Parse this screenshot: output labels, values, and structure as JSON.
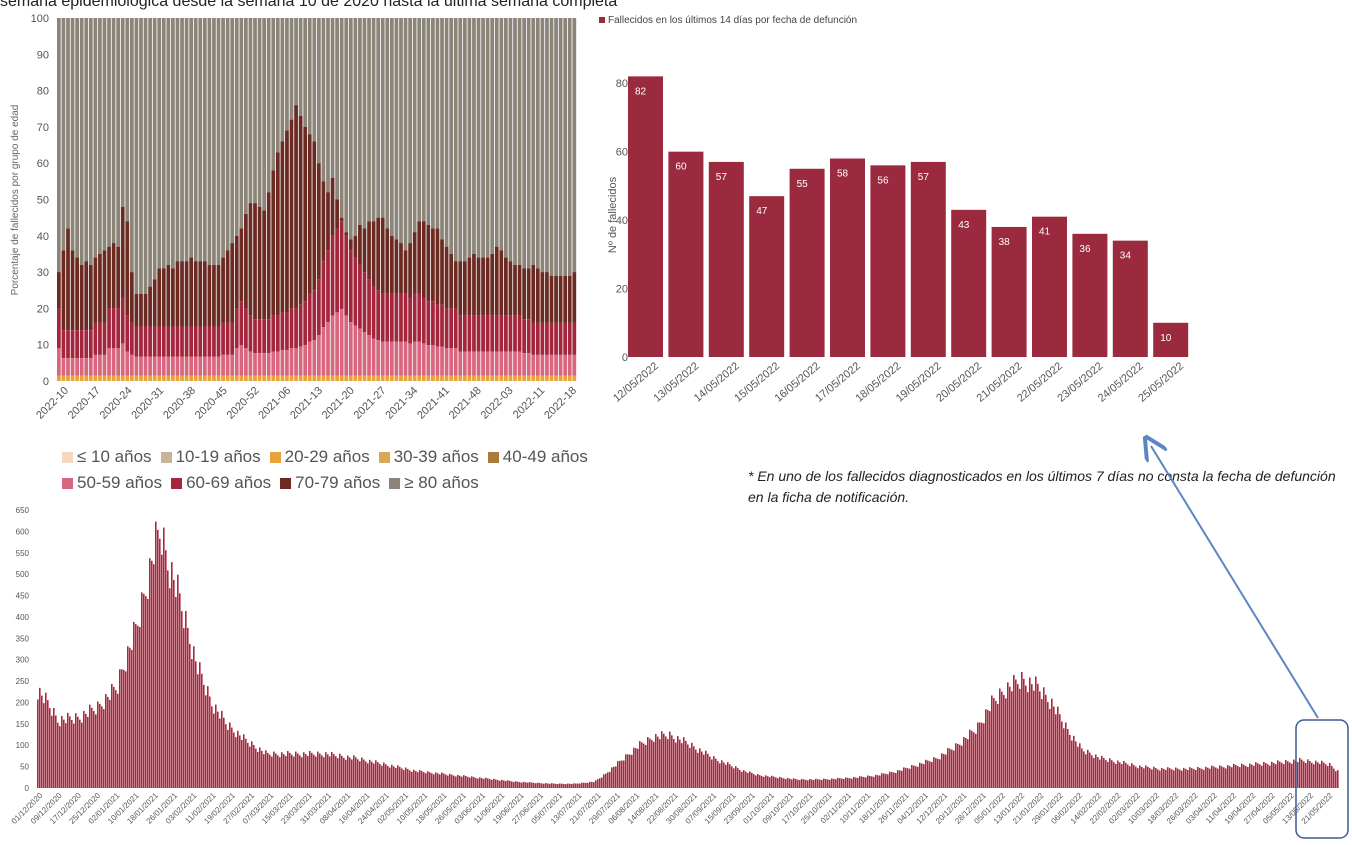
{
  "header": {
    "text": "semana epidemiológica desde la semana 10 de 2020 hasta la última semana completa"
  },
  "footnote": {
    "text": "* En uno de los fallecidos diagnosticados en los últimos 7 días no consta la fecha de defunción en la ficha de notificación."
  },
  "chart_data": [
    {
      "type": "bar",
      "stacked": true,
      "ylabel": "Porcentaje de fallecidos por grupo de edad",
      "ylim": [
        0,
        100
      ],
      "yticks": [
        0,
        10,
        20,
        30,
        40,
        50,
        60,
        70,
        80,
        90,
        100
      ],
      "xtick_labels": [
        "2022-10",
        "2020-17",
        "2020-24",
        "2020-31",
        "2020-38",
        "2020-45",
        "2020-52",
        "2021-06",
        "2021-13",
        "2021-20",
        "2021-27",
        "2021-34",
        "2021-41",
        "2021-48",
        "2022-03",
        "2022-11",
        "2022-18"
      ],
      "legend": [
        {
          "name": "≤ 10 años",
          "color": "#f2d9bf"
        },
        {
          "name": "10-19 años",
          "color": "#c8b49a"
        },
        {
          "name": "20-29 años",
          "color": "#e9a23b"
        },
        {
          "name": "30-39 años",
          "color": "#d8a955"
        },
        {
          "name": "40-49 años",
          "color": "#a87a3c"
        },
        {
          "name": "50-59 años",
          "color": "#d9667f"
        },
        {
          "name": "60-69 años",
          "color": "#a3263c"
        },
        {
          "name": "70-79 años",
          "color": "#6b2a22"
        },
        {
          "name": "≥ 80 años",
          "color": "#8b8478"
        }
      ],
      "weeks": 114,
      "cumulative_under70_pct": [
        20,
        14,
        14,
        14,
        14,
        14,
        14,
        14,
        16,
        16,
        16,
        20,
        20,
        20,
        23,
        18,
        16,
        15,
        15,
        15,
        15,
        15,
        15,
        15,
        15,
        15,
        15,
        15,
        15,
        15,
        15,
        15,
        15,
        15,
        15,
        15,
        16,
        16,
        16,
        20,
        22,
        20,
        18,
        17,
        17,
        17,
        17,
        18,
        18,
        19,
        19,
        20,
        20,
        21,
        22,
        24,
        25,
        28,
        33,
        36,
        40,
        42,
        44,
        40,
        36,
        34,
        32,
        30,
        28,
        26,
        25,
        24,
        24,
        24,
        24,
        24,
        24,
        23,
        24,
        24,
        23,
        22,
        22,
        21,
        21,
        20,
        20,
        20,
        18,
        18,
        18,
        18,
        18,
        18,
        18,
        18,
        18,
        18,
        18,
        18,
        18,
        18,
        17,
        17,
        16,
        16,
        16,
        16,
        16,
        16,
        16,
        16,
        16,
        16
      ],
      "cumulative_under80_pct": [
        30,
        36,
        42,
        36,
        34,
        32,
        33,
        32,
        34,
        35,
        36,
        37,
        38,
        37,
        48,
        44,
        30,
        24,
        24,
        24,
        26,
        28,
        31,
        31,
        32,
        31,
        33,
        33,
        33,
        34,
        33,
        33,
        33,
        32,
        32,
        32,
        34,
        36,
        38,
        40,
        42,
        46,
        49,
        49,
        48,
        47,
        52,
        58,
        63,
        66,
        69,
        72,
        76,
        73,
        70,
        68,
        66,
        60,
        55,
        52,
        56,
        50,
        45,
        41,
        39,
        40,
        43,
        42,
        44,
        44,
        45,
        45,
        42,
        40,
        39,
        38,
        36,
        38,
        41,
        44,
        44,
        43,
        42,
        42,
        39,
        37,
        35,
        33,
        33,
        33,
        34,
        35,
        34,
        34,
        34,
        35,
        37,
        36,
        34,
        33,
        32,
        32,
        31,
        31,
        32,
        31,
        30,
        30,
        29,
        29,
        29,
        29,
        29,
        30
      ],
      "colors": {
        "lower": "#d9667f",
        "lower_dark": "#a3263c",
        "middle": "#6b2a22",
        "top": "#8b8478"
      }
    },
    {
      "type": "bar",
      "legend": [
        {
          "name": "Fallecidos en los últimos 14 días por fecha de defunción",
          "color": "#9b2a3e"
        }
      ],
      "ylabel": "Nº de fallecidos",
      "ylim": [
        0,
        90
      ],
      "yticks": [
        0,
        20,
        40,
        60,
        80
      ],
      "categories": [
        "12/05/2022",
        "13/05/2022",
        "14/05/2022",
        "15/05/2022",
        "16/05/2022",
        "17/05/2022",
        "18/05/2022",
        "19/05/2022",
        "20/05/2022",
        "21/05/2022",
        "22/05/2022",
        "23/05/2022",
        "24/05/2022",
        "25/05/2022"
      ],
      "values": [
        82,
        60,
        57,
        47,
        55,
        58,
        56,
        57,
        43,
        38,
        41,
        36,
        34,
        10
      ],
      "color": "#9b2a3e"
    },
    {
      "type": "bar",
      "ylim": [
        0,
        650
      ],
      "yticks": [
        0,
        50,
        100,
        150,
        200,
        250,
        300,
        350,
        400,
        450,
        500,
        550,
        600,
        650
      ],
      "color": "#a8283f",
      "xtick_labels": [
        "01/12/2020",
        "09/12/2020",
        "17/12/2020",
        "25/12/2020",
        "02/01/2021",
        "10/01/2021",
        "18/01/2021",
        "26/01/2021",
        "03/02/2021",
        "11/02/2021",
        "19/02/2021",
        "27/02/2021",
        "07/03/2021",
        "15/03/2021",
        "23/03/2021",
        "31/03/2021",
        "08/04/2021",
        "16/04/2021",
        "24/04/2021",
        "02/05/2021",
        "10/05/2021",
        "18/05/2021",
        "26/05/2021",
        "03/06/2021",
        "11/06/2021",
        "19/06/2021",
        "27/06/2021",
        "05/07/2021",
        "13/07/2021",
        "21/07/2021",
        "29/07/2021",
        "06/08/2021",
        "14/08/2021",
        "22/08/2021",
        "30/08/2021",
        "07/09/2021",
        "15/09/2021",
        "23/09/2021",
        "01/10/2021",
        "09/10/2021",
        "17/10/2021",
        "25/10/2021",
        "02/11/2021",
        "10/11/2021",
        "18/11/2021",
        "26/11/2021",
        "04/12/2021",
        "12/12/2021",
        "20/12/2021",
        "28/12/2021",
        "05/01/2022",
        "13/01/2022",
        "21/01/2022",
        "29/01/2022",
        "06/02/2022",
        "14/02/2022",
        "22/02/2022",
        "02/03/2022",
        "10/03/2022",
        "18/03/2022",
        "26/03/2022",
        "03/04/2022",
        "11/04/2022",
        "19/04/2022",
        "27/04/2022",
        "05/05/2022",
        "13/05/2022",
        "21/05/2022"
      ],
      "series_keypoints": [
        [
          0,
          230
        ],
        [
          10,
          200
        ],
        [
          20,
          160
        ],
        [
          40,
          165
        ],
        [
          60,
          190
        ],
        [
          80,
          240
        ],
        [
          100,
          380
        ],
        [
          110,
          480
        ],
        [
          118,
          570
        ],
        [
          124,
          605
        ],
        [
          130,
          540
        ],
        [
          140,
          470
        ],
        [
          150,
          380
        ],
        [
          160,
          290
        ],
        [
          175,
          200
        ],
        [
          190,
          150
        ],
        [
          210,
          110
        ],
        [
          230,
          80
        ],
        [
          260,
          80
        ],
        [
          290,
          80
        ],
        [
          320,
          70
        ],
        [
          340,
          60
        ],
        [
          360,
          50
        ],
        [
          380,
          40
        ],
        [
          400,
          35
        ],
        [
          420,
          30
        ],
        [
          440,
          25
        ],
        [
          460,
          20
        ],
        [
          480,
          15
        ],
        [
          500,
          12
        ],
        [
          520,
          10
        ],
        [
          540,
          10
        ],
        [
          560,
          15
        ],
        [
          575,
          40
        ],
        [
          590,
          70
        ],
        [
          605,
          100
        ],
        [
          620,
          120
        ],
        [
          635,
          125
        ],
        [
          650,
          110
        ],
        [
          665,
          90
        ],
        [
          680,
          70
        ],
        [
          695,
          55
        ],
        [
          710,
          40
        ],
        [
          725,
          30
        ],
        [
          745,
          25
        ],
        [
          765,
          20
        ],
        [
          785,
          20
        ],
        [
          805,
          22
        ],
        [
          825,
          25
        ],
        [
          845,
          30
        ],
        [
          865,
          40
        ],
        [
          885,
          55
        ],
        [
          905,
          70
        ],
        [
          925,
          100
        ],
        [
          945,
          140
        ],
        [
          960,
          200
        ],
        [
          975,
          235
        ],
        [
          990,
          255
        ],
        [
          1005,
          240
        ],
        [
          1020,
          200
        ],
        [
          1035,
          140
        ],
        [
          1050,
          90
        ],
        [
          1070,
          70
        ],
        [
          1090,
          60
        ],
        [
          1110,
          50
        ],
        [
          1130,
          45
        ],
        [
          1160,
          45
        ],
        [
          1190,
          50
        ],
        [
          1220,
          55
        ],
        [
          1250,
          60
        ],
        [
          1270,
          65
        ],
        [
          1290,
          60
        ],
        [
          1300,
          55
        ],
        [
          1308,
          40
        ]
      ]
    }
  ],
  "annotation": {
    "box_color": "#3c5a91",
    "arrow_color": "#5b86c4"
  }
}
